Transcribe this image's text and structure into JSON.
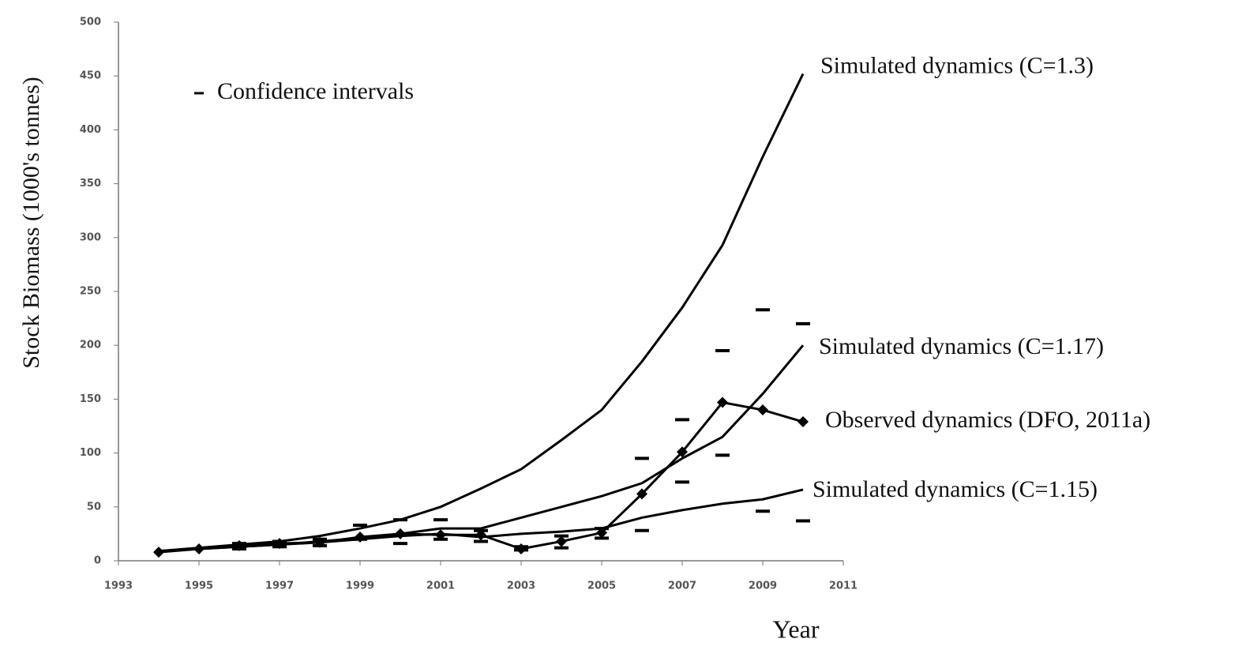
{
  "chart_data": {
    "type": "line",
    "y_label": "Stock Biomass (1000's tonnes)",
    "x_label": "Year",
    "x": [
      1994,
      1995,
      1996,
      1997,
      1998,
      1999,
      2000,
      2001,
      2002,
      2003,
      2004,
      2005,
      2006,
      2007,
      2008,
      2009,
      2010
    ],
    "series": [
      {
        "name": "Simulated dynamics (C=1.3)",
        "color": "#000000",
        "markers": false,
        "values": [
          9,
          12,
          15,
          18,
          23,
          30,
          38,
          50,
          67,
          85,
          112,
          140,
          185,
          235,
          293,
          375,
          452
        ]
      },
      {
        "name": "Simulated dynamics (C=1.17)",
        "color": "#000000",
        "markers": false,
        "values": [
          9,
          11,
          13,
          15,
          18,
          21,
          25,
          30,
          30,
          40,
          50,
          60,
          72,
          95,
          115,
          155,
          200
        ]
      },
      {
        "name": "Observed dynamics (DFO, 2011a)",
        "color": "#000000",
        "markers": true,
        "values": [
          8,
          11,
          14,
          16,
          17,
          22,
          25,
          24,
          24,
          11,
          18,
          26,
          62,
          101,
          147,
          140,
          129
        ]
      },
      {
        "name": "Simulated dynamics (C=1.15)",
        "color": "#000000",
        "markers": false,
        "values": [
          9,
          11,
          13,
          15,
          17,
          20,
          23,
          25,
          22,
          25,
          27,
          30,
          40,
          47,
          53,
          57,
          66
        ]
      }
    ],
    "confidence_intervals": {
      "label": "Confidence intervals",
      "x": [
        1996,
        1997,
        1998,
        1999,
        2000,
        2001,
        2002,
        2003,
        2004,
        2005,
        2006,
        2007,
        2008,
        2009,
        2010
      ],
      "lower": [
        11,
        13,
        14,
        20,
        16,
        20,
        18,
        10,
        12,
        21,
        28,
        73,
        98,
        46,
        37
      ],
      "upper": [
        16,
        18,
        20,
        33,
        38,
        38,
        28,
        13,
        23,
        30,
        95,
        131,
        195,
        233,
        220
      ]
    },
    "xlim": [
      1993,
      2011
    ],
    "xticks": [
      1993,
      1995,
      1997,
      1999,
      2001,
      2003,
      2005,
      2007,
      2009,
      2011
    ],
    "ylim": [
      0,
      500
    ],
    "yticks": [
      0,
      50,
      100,
      150,
      200,
      250,
      300,
      350,
      400,
      450,
      500
    ]
  }
}
